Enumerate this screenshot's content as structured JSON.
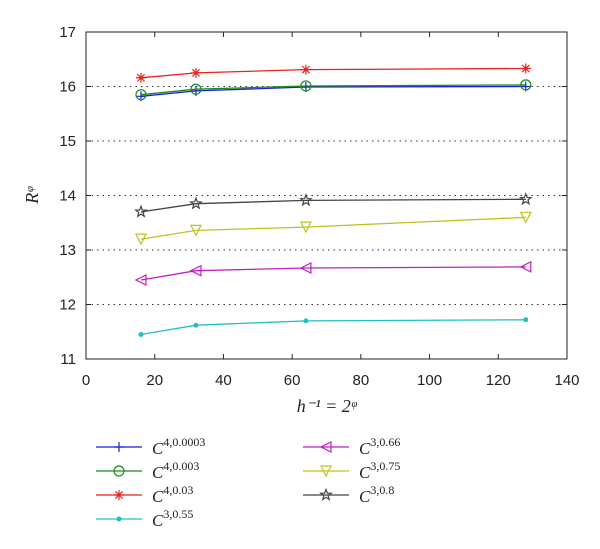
{
  "chart_data": {
    "type": "line",
    "xlabel": "h⁻¹ = 2ᵠ",
    "ylabel": "Rᵠ",
    "xlim": [
      0,
      140
    ],
    "ylim": [
      11,
      17
    ],
    "xticks": [
      0,
      20,
      40,
      60,
      80,
      100,
      120,
      140
    ],
    "yticks": [
      11,
      12,
      13,
      14,
      15,
      16,
      17
    ],
    "grid": "horizontal dotted",
    "legend_position": "below",
    "x": [
      16,
      32,
      64,
      128
    ],
    "series": [
      {
        "name": "C^{4,0.0003}",
        "base": "C",
        "sup": "4,0.0003",
        "color": "#1f1fd8",
        "marker": "plus",
        "values": [
          15.82,
          15.92,
          15.99,
          16.0
        ]
      },
      {
        "name": "C^{4,0.003}",
        "base": "C",
        "sup": "4,0.003",
        "color": "#1a8c1a",
        "marker": "circle",
        "values": [
          15.85,
          15.95,
          16.01,
          16.03
        ]
      },
      {
        "name": "C^{4,0.03}",
        "base": "C",
        "sup": "4,0.03",
        "color": "#e8231f",
        "marker": "star",
        "values": [
          16.16,
          16.25,
          16.31,
          16.33
        ]
      },
      {
        "name": "C^{3,0.55}",
        "base": "C",
        "sup": "3,0.55",
        "color": "#1fc0c0",
        "marker": "dot",
        "values": [
          11.45,
          11.62,
          11.7,
          11.72
        ]
      },
      {
        "name": "C^{3,0.66}",
        "base": "C",
        "sup": "3,0.66",
        "color": "#c01fc0",
        "marker": "triangle-left",
        "values": [
          12.45,
          12.62,
          12.67,
          12.69
        ]
      },
      {
        "name": "C^{3,0.75}",
        "base": "C",
        "sup": "3,0.75",
        "color": "#c2c21f",
        "marker": "triangle-down",
        "values": [
          13.2,
          13.36,
          13.42,
          13.6
        ]
      },
      {
        "name": "C^{3,0.8}",
        "base": "C",
        "sup": "3,0.8",
        "color": "#444444",
        "marker": "pentagram",
        "values": [
          13.7,
          13.85,
          13.91,
          13.93
        ]
      }
    ]
  }
}
